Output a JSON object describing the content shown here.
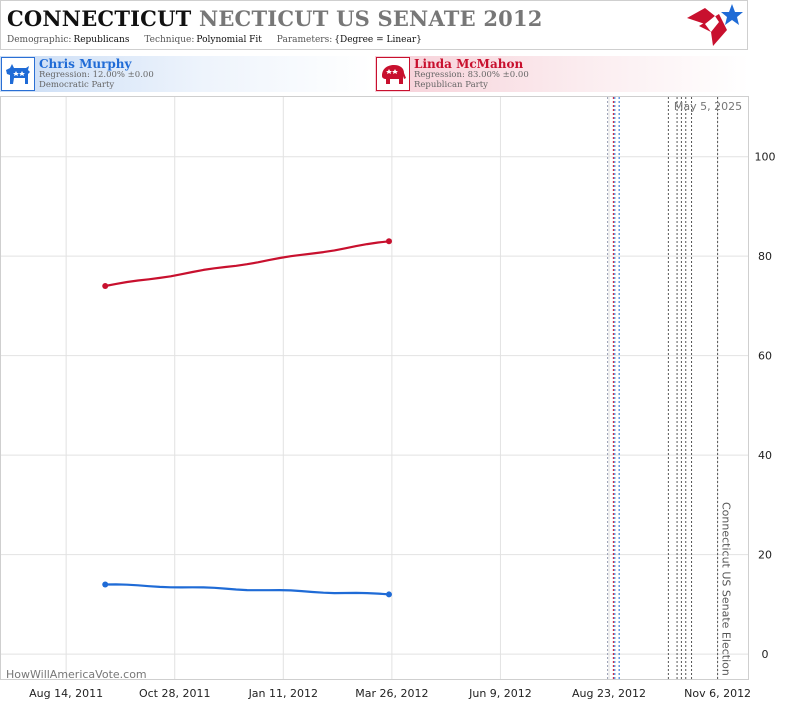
{
  "header": {
    "title_main": "CONNECTICUT",
    "title_sub": "NECTICUT US SENATE 2012",
    "meta": [
      {
        "key": "Demographic:",
        "value": "Republicans"
      },
      {
        "key": "Technique:",
        "value": "Polynomial Fit"
      },
      {
        "key": "Parameters:",
        "value": "{Degree = Linear}"
      }
    ]
  },
  "candidates": {
    "dem": {
      "name": "Chris Murphy",
      "regression": "Regression: 12.00% ±0.00",
      "party": "Democratic Party",
      "icon": "donkey-icon",
      "color": "#1f6bd6"
    },
    "rep": {
      "name": "Linda McMahon",
      "regression": "Regression: 83.00% ±0.00",
      "party": "Republican Party",
      "icon": "elephant-icon",
      "color": "#c8102e"
    }
  },
  "watermark": "HowWillAmericaVote.com",
  "chart_data": {
    "type": "line",
    "x_ticks": [
      "Aug 14, 2011",
      "Oct 28, 2011",
      "Jan 11, 2012",
      "Mar 26, 2012",
      "Jun 9, 2012",
      "Aug 23, 2012",
      "Nov 6, 2012"
    ],
    "y_ticks": [
      0,
      20,
      40,
      60,
      80,
      100
    ],
    "ylim": [
      -5,
      112
    ],
    "xlim": [
      "2011-06-30",
      "2012-11-27"
    ],
    "grid": true,
    "series": [
      {
        "name": "Linda McMahon",
        "color": "#c8102e",
        "x": [
          "2011-09-10",
          "2012-03-24"
        ],
        "y": [
          74,
          83
        ]
      },
      {
        "name": "Chris Murphy",
        "color": "#1f6bd6",
        "x": [
          "2011-09-10",
          "2012-03-24"
        ],
        "y": [
          14,
          12
        ]
      }
    ],
    "annotations": {
      "date_label": "May 5, 2025",
      "election_label": "Connecticut US Senate Election",
      "vlines": [
        {
          "date": "2012-08-22",
          "color": "#9aa0b4",
          "style": "dotted"
        },
        {
          "date": "2012-08-26",
          "color": "#c8102e",
          "style": "dotted"
        },
        {
          "date": "2012-08-27",
          "color": "#1f6bd6",
          "style": "dotted"
        },
        {
          "date": "2012-08-30",
          "color": "#1f6bd6",
          "style": "dotted"
        },
        {
          "date": "2012-10-03",
          "color": "#555555",
          "style": "dotted"
        },
        {
          "date": "2012-10-09",
          "color": "#555555",
          "style": "dotted"
        },
        {
          "date": "2012-10-12",
          "color": "#555555",
          "style": "dotted"
        },
        {
          "date": "2012-10-15",
          "color": "#555555",
          "style": "dotted"
        },
        {
          "date": "2012-10-19",
          "color": "#555555",
          "style": "dotted"
        },
        {
          "date": "2012-11-06",
          "color": "#555555",
          "style": "dotted"
        }
      ]
    }
  }
}
